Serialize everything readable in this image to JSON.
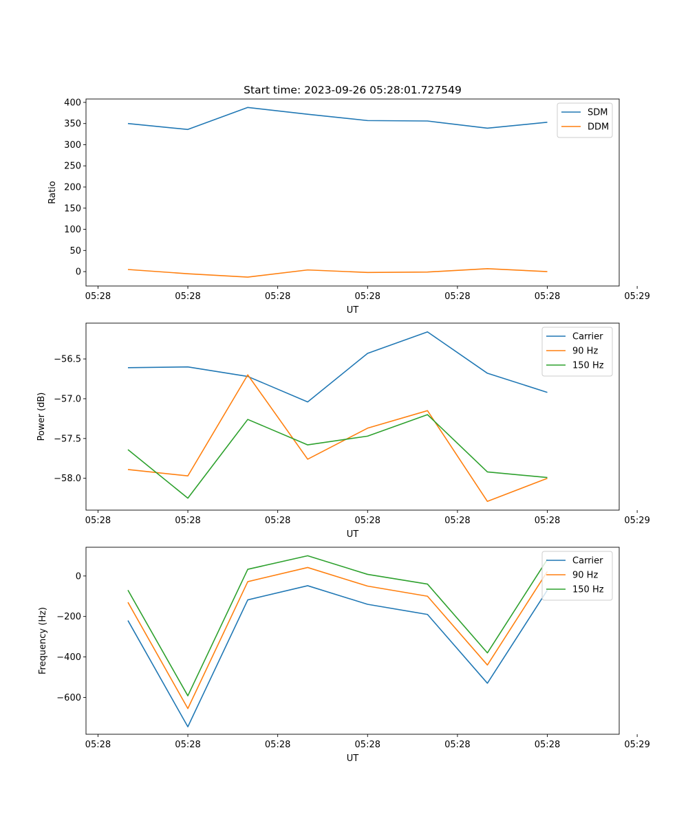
{
  "figure_title": "Start time: 2023-09-26 05:28:01.727549",
  "chart_data": [
    {
      "type": "line",
      "title": "Start time: 2023-09-26 05:28:01.727549",
      "xlabel": "UT",
      "ylabel": "Ratio",
      "x": [
        1,
        2,
        3,
        4,
        5,
        6,
        7,
        8
      ],
      "xlim": [
        0.3,
        9.2
      ],
      "xticks": [
        0.5,
        2,
        3.5,
        5,
        6.5,
        8,
        9.5
      ],
      "xtick_labels": [
        "05:28",
        "05:28",
        "05:28",
        "05:28",
        "05:28",
        "05:28",
        "05:29"
      ],
      "ylim": [
        -34,
        408
      ],
      "yticks": [
        0,
        50,
        100,
        150,
        200,
        250,
        300,
        350,
        400
      ],
      "ytick_labels": [
        "0",
        "50",
        "100",
        "150",
        "200",
        "250",
        "300",
        "350",
        "400"
      ],
      "legend": "top-right",
      "series": [
        {
          "name": "SDM",
          "color": "#1f77b4",
          "values": [
            350,
            336,
            388,
            372,
            357,
            356,
            339,
            353
          ]
        },
        {
          "name": "DDM",
          "color": "#ff7f0e",
          "values": [
            5,
            -5,
            -13,
            4,
            -2,
            -1,
            7,
            0
          ]
        }
      ]
    },
    {
      "type": "line",
      "xlabel": "UT",
      "ylabel": "Power (dB)",
      "x": [
        1,
        2,
        3,
        4,
        5,
        6,
        7,
        8
      ],
      "xlim": [
        0.3,
        9.2
      ],
      "xticks": [
        0.5,
        2,
        3.5,
        5,
        6.5,
        8,
        9.5
      ],
      "xtick_labels": [
        "05:28",
        "05:28",
        "05:28",
        "05:28",
        "05:28",
        "05:28",
        "05:29"
      ],
      "ylim": [
        -58.4,
        -56.05
      ],
      "yticks": [
        -58.0,
        -57.5,
        -57.0,
        -56.5
      ],
      "ytick_labels": [
        "−58.0",
        "−57.5",
        "−57.0",
        "−56.5"
      ],
      "legend": "top-right",
      "series": [
        {
          "name": "Carrier",
          "color": "#1f77b4",
          "values": [
            -56.61,
            -56.6,
            -56.72,
            -57.04,
            -56.43,
            -56.16,
            -56.68,
            -56.92
          ]
        },
        {
          "name": "90 Hz",
          "color": "#ff7f0e",
          "values": [
            -57.89,
            -57.97,
            -56.7,
            -57.76,
            -57.37,
            -57.15,
            -58.29,
            -58.0
          ]
        },
        {
          "name": "150 Hz",
          "color": "#2ca02c",
          "values": [
            -57.64,
            -58.25,
            -57.26,
            -57.58,
            -57.47,
            -57.2,
            -57.92,
            -57.99
          ]
        }
      ]
    },
    {
      "type": "line",
      "xlabel": "UT",
      "ylabel": "Frequency (Hz)",
      "x": [
        1,
        2,
        3,
        4,
        5,
        6,
        7,
        8
      ],
      "xlim": [
        0.3,
        9.2
      ],
      "xticks": [
        0.5,
        2,
        3.5,
        5,
        6.5,
        8,
        9.5
      ],
      "xtick_labels": [
        "05:28",
        "05:28",
        "05:28",
        "05:28",
        "05:28",
        "05:28",
        "05:29"
      ],
      "ylim": [
        -782,
        142
      ],
      "yticks": [
        -600,
        -400,
        -200,
        0
      ],
      "ytick_labels": [
        "−600",
        "−400",
        "−200",
        "0"
      ],
      "legend": "top-right",
      "series": [
        {
          "name": "Carrier",
          "color": "#1f77b4",
          "values": [
            -220,
            -745,
            -118,
            -48,
            -140,
            -190,
            -530,
            -70
          ]
        },
        {
          "name": "90 Hz",
          "color": "#ff7f0e",
          "values": [
            -130,
            -655,
            -28,
            42,
            -50,
            -100,
            -440,
            22
          ]
        },
        {
          "name": "150 Hz",
          "color": "#2ca02c",
          "values": [
            -70,
            -592,
            33,
            100,
            8,
            -40,
            -380,
            82
          ]
        }
      ]
    }
  ]
}
